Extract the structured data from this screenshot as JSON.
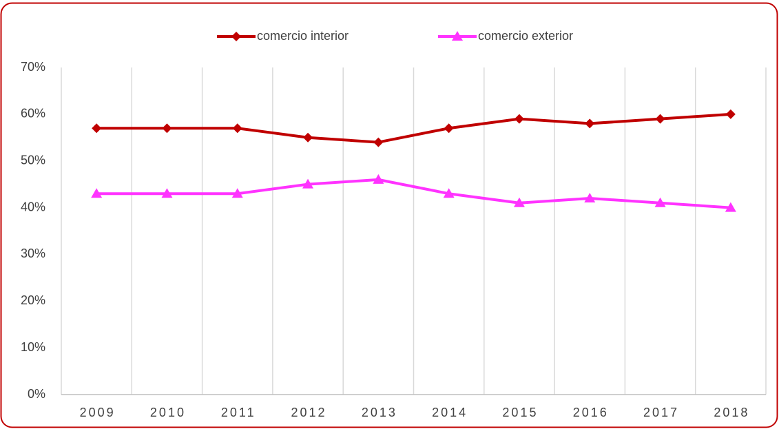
{
  "chart_data": {
    "type": "line",
    "categories": [
      "2009",
      "2010",
      "2011",
      "2012",
      "2013",
      "2014",
      "2015",
      "2016",
      "2017",
      "2018"
    ],
    "series": [
      {
        "name": "comercio interior",
        "color": "#c00000",
        "marker": "diamond",
        "values": [
          57,
          57,
          57,
          55,
          54,
          57,
          59,
          58,
          59,
          60
        ]
      },
      {
        "name": "comercio exterior",
        "color": "#ff33ff",
        "marker": "triangle",
        "values": [
          43,
          43,
          43,
          45,
          46,
          43,
          41,
          42,
          41,
          40
        ]
      }
    ],
    "ylim": [
      0,
      70
    ],
    "yticks": [
      {
        "value": 0,
        "label": "0%"
      },
      {
        "value": 10,
        "label": "10%"
      },
      {
        "value": 20,
        "label": "20%"
      },
      {
        "value": 30,
        "label": "30%"
      },
      {
        "value": 40,
        "label": "40%"
      },
      {
        "value": 50,
        "label": "50%"
      },
      {
        "value": 60,
        "label": "60%"
      },
      {
        "value": 70,
        "label": "70%"
      }
    ],
    "grid": true,
    "legend": "top"
  }
}
